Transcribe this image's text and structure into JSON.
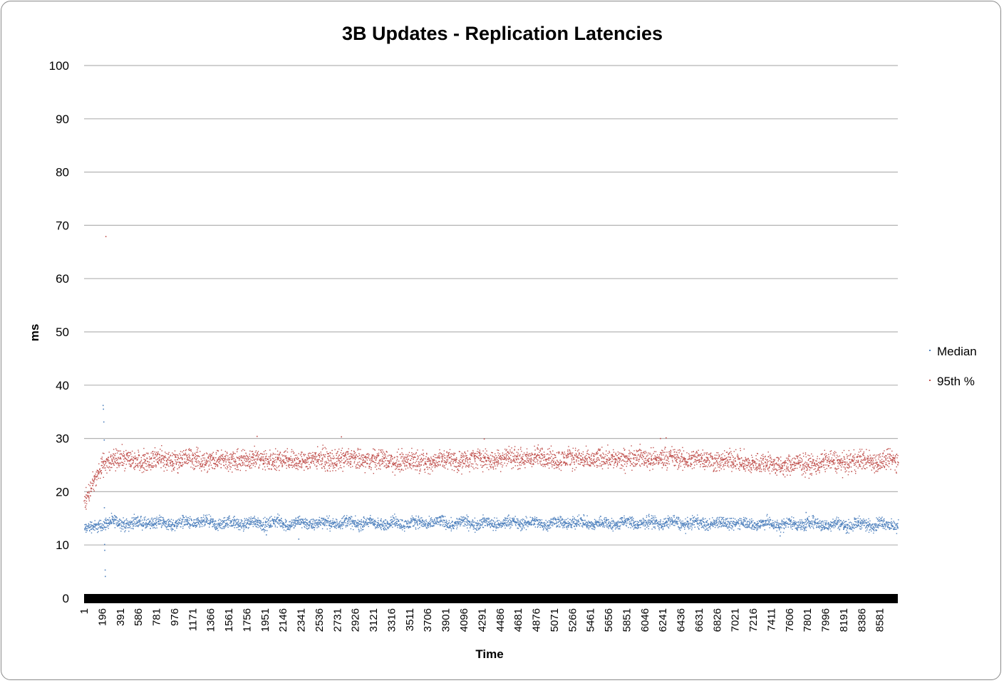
{
  "chart_data": {
    "type": "scatter",
    "title": "3B Updates - Replication Latencies",
    "xlabel": "Time",
    "ylabel": "ms",
    "ylim": [
      0,
      100
    ],
    "yticks": [
      0,
      10,
      20,
      30,
      40,
      50,
      60,
      70,
      80,
      90,
      100
    ],
    "xlim": [
      1,
      8775
    ],
    "xticks": [
      1,
      196,
      391,
      586,
      781,
      976,
      1171,
      1366,
      1561,
      1756,
      1951,
      2146,
      2341,
      2536,
      2731,
      2926,
      3121,
      3316,
      3511,
      3706,
      3901,
      4096,
      4291,
      4486,
      4681,
      4876,
      5071,
      5266,
      5461,
      5656,
      5851,
      6046,
      6241,
      6436,
      6631,
      6826,
      7021,
      7216,
      7411,
      7606,
      7801,
      7996,
      8191,
      8386,
      8581
    ],
    "grid": true,
    "legend_position": "right",
    "series": [
      {
        "name": "Median",
        "color": "#4f81bd",
        "x": [
          1,
          60,
          120,
          170,
          196,
          205,
          230,
          300,
          400,
          500,
          600,
          700,
          800,
          900,
          1000,
          1200,
          1400,
          1600,
          1800,
          2000,
          2200,
          2400,
          2600,
          2800,
          3000,
          3200,
          3400,
          3600,
          3800,
          4000,
          4200,
          4400,
          4600,
          4800,
          5000,
          5200,
          5400,
          5600,
          5800,
          6000,
          6200,
          6400,
          6600,
          6800,
          7000,
          7200,
          7400,
          7600,
          7800,
          8000,
          8200,
          8400,
          8600,
          8775
        ],
        "values": [
          13,
          13.2,
          13.5,
          14,
          14.2,
          14.2,
          14.3,
          14.2,
          14.3,
          14.1,
          14.2,
          14.3,
          14.2,
          14.1,
          14.2,
          14.3,
          14.1,
          14.2,
          14.2,
          14.3,
          14.1,
          14.2,
          14.2,
          14.3,
          14.2,
          14.1,
          14.2,
          14.2,
          14.3,
          14.2,
          14.2,
          14.1,
          14.3,
          14.2,
          14.2,
          14.3,
          14.2,
          14.1,
          14.2,
          14.2,
          14.3,
          14.2,
          14.1,
          14.2,
          14.2,
          14.1,
          14,
          14,
          14.1,
          14,
          13.9,
          14,
          14,
          13.8
        ],
        "outliers": [
          [
            200,
            36.3
          ],
          [
            204,
            35.6
          ],
          [
            208,
            33.2
          ],
          [
            212,
            29.8
          ],
          [
            214,
            17.1
          ],
          [
            216,
            10.2
          ],
          [
            218,
            9.1
          ],
          [
            222,
            5.4
          ],
          [
            224,
            4.2
          ],
          [
            1960,
            12
          ],
          [
            2310,
            11.2
          ],
          [
            7500,
            11.8
          ],
          [
            7780,
            16.2
          ]
        ]
      },
      {
        "name": "95th %",
        "color": "#c0504d",
        "x": [
          1,
          30,
          60,
          100,
          140,
          180,
          196,
          230,
          300,
          400,
          500,
          600,
          700,
          800,
          900,
          1000,
          1200,
          1400,
          1600,
          1800,
          2000,
          2200,
          2400,
          2600,
          2800,
          3000,
          3200,
          3400,
          3600,
          3800,
          4000,
          4200,
          4400,
          4600,
          4800,
          5000,
          5200,
          5400,
          5600,
          5800,
          6000,
          6200,
          6400,
          6600,
          6800,
          7000,
          7200,
          7400,
          7600,
          7800,
          8000,
          8200,
          8400,
          8600,
          8775
        ],
        "values": [
          18,
          19.2,
          20,
          21.5,
          23,
          24.5,
          25.5,
          25.8,
          26,
          26.1,
          26,
          26.2,
          26,
          26.1,
          26,
          26.1,
          26.2,
          26,
          26.1,
          26.1,
          26.2,
          26,
          26.1,
          26.2,
          26,
          26.1,
          26,
          25.9,
          25.8,
          25.9,
          26,
          26.1,
          26.2,
          26.4,
          26.5,
          26.4,
          26.3,
          26.2,
          26.2,
          26.3,
          26.4,
          26.4,
          26.3,
          26.2,
          26,
          25.8,
          25.5,
          25.2,
          25,
          25.3,
          25.6,
          25.7,
          25.8,
          26,
          25.7
        ],
        "outliers": [
          [
            230,
            68
          ],
          [
            1860,
            30.5
          ],
          [
            2770,
            30.4
          ],
          [
            4310,
            30
          ],
          [
            6210,
            30.1
          ],
          [
            6270,
            30.2
          ]
        ]
      }
    ]
  }
}
